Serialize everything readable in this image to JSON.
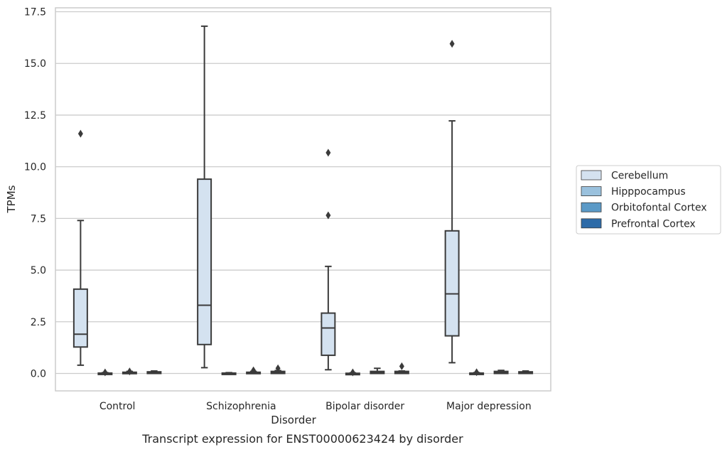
{
  "chart_data": {
    "type": "box",
    "title": "",
    "caption": "Transcript expression for ENST00000623424 by disorder",
    "xlabel": "Disorder",
    "ylabel": "TPMs",
    "ylim": [
      -0.8,
      17.6
    ],
    "yticks": [
      "0.0",
      "2.5",
      "5.0",
      "7.5",
      "10.0",
      "12.5",
      "15.0",
      "17.5"
    ],
    "ytick_values": [
      0,
      2.5,
      5,
      7.5,
      10,
      12.5,
      15,
      17.5
    ],
    "grid": "horizontal",
    "legend_position": "right",
    "categories": [
      "Control",
      "Schizophrenia",
      "Bipolar disorder",
      "Major depression"
    ],
    "series": [
      {
        "name": "Cerebellum",
        "color": "#d4e2f0",
        "boxes": [
          {
            "whislo": 0.4,
            "q1": 1.28,
            "med": 1.9,
            "q3": 4.08,
            "whishi": 7.4,
            "fliers": [
              11.6
            ]
          },
          {
            "whislo": 0.28,
            "q1": 1.4,
            "med": 3.3,
            "q3": 9.4,
            "whishi": 16.8,
            "fliers": []
          },
          {
            "whislo": 0.18,
            "q1": 0.88,
            "med": 2.2,
            "q3": 2.92,
            "whishi": 5.18,
            "fliers": [
              7.65,
              10.68
            ]
          },
          {
            "whislo": 0.52,
            "q1": 1.82,
            "med": 3.85,
            "q3": 6.9,
            "whishi": 12.22,
            "fliers": [
              15.95
            ]
          }
        ]
      },
      {
        "name": "Hipppocampus",
        "color": "#9ac1dd",
        "boxes": [
          {
            "whislo": 0.0,
            "q1": 0.0,
            "med": 0.0,
            "q3": 0.02,
            "whishi": 0.04,
            "fliers": [
              0.05
            ]
          },
          {
            "whislo": 0.0,
            "q1": 0.0,
            "med": 0.0,
            "q3": 0.02,
            "whishi": 0.04,
            "fliers": []
          },
          {
            "whislo": 0.0,
            "q1": 0.0,
            "med": 0.0,
            "q3": 0.01,
            "whishi": 0.03,
            "fliers": [
              0.05
            ]
          },
          {
            "whislo": 0.0,
            "q1": 0.0,
            "med": 0.0,
            "q3": 0.02,
            "whishi": 0.04,
            "fliers": [
              0.06
            ]
          }
        ]
      },
      {
        "name": "Orbitofontal Cortex",
        "color": "#5b9ac7",
        "boxes": [
          {
            "whislo": 0.0,
            "q1": 0.0,
            "med": 0.02,
            "q3": 0.06,
            "whishi": 0.1,
            "fliers": [
              0.1
            ]
          },
          {
            "whislo": 0.0,
            "q1": 0.0,
            "med": 0.02,
            "q3": 0.06,
            "whishi": 0.1,
            "fliers": [
              0.15
            ]
          },
          {
            "whislo": 0.0,
            "q1": 0.0,
            "med": 0.04,
            "q3": 0.1,
            "whishi": 0.25,
            "fliers": []
          },
          {
            "whislo": 0.0,
            "q1": 0.0,
            "med": 0.04,
            "q3": 0.1,
            "whishi": 0.15,
            "fliers": []
          }
        ]
      },
      {
        "name": "Prefrontal Cortex",
        "color": "#2d6ba8",
        "boxes": [
          {
            "whislo": 0.0,
            "q1": 0.0,
            "med": 0.04,
            "q3": 0.08,
            "whishi": 0.12,
            "fliers": []
          },
          {
            "whislo": 0.0,
            "q1": 0.0,
            "med": 0.05,
            "q3": 0.1,
            "whishi": 0.14,
            "fliers": [
              0.25
            ]
          },
          {
            "whislo": 0.0,
            "q1": 0.0,
            "med": 0.05,
            "q3": 0.1,
            "whishi": 0.12,
            "fliers": [
              0.35
            ]
          },
          {
            "whislo": 0.0,
            "q1": 0.0,
            "med": 0.04,
            "q3": 0.08,
            "whishi": 0.12,
            "fliers": []
          }
        ]
      }
    ]
  }
}
